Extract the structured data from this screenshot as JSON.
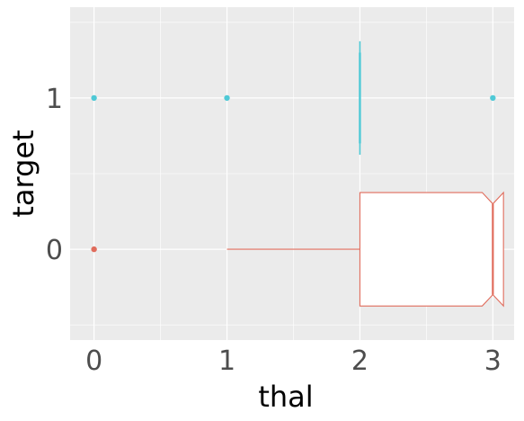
{
  "chart_data": {
    "type": "boxplot",
    "orientation": "horizontal",
    "notched": true,
    "xlabel": "thal",
    "ylabel": "target",
    "x_ticks": [
      "0",
      "1",
      "2",
      "3"
    ],
    "y_ticks": [
      "0",
      "1"
    ],
    "xlim": [
      -0.18,
      3.16
    ],
    "ylim": [
      -0.6,
      1.6
    ],
    "grid": true,
    "legend": "none",
    "colors": {
      "0": "#e06c5c",
      "1": "#4fc9d6"
    },
    "series": [
      {
        "target": 0,
        "whisker_low": 1,
        "q1": 2,
        "median": 3,
        "q3": 3,
        "whisker_high": 3,
        "notch_low": 2.92,
        "notch_high": 3.08,
        "outliers": [
          0
        ]
      },
      {
        "target": 1,
        "whisker_low": 2,
        "q1": 2,
        "median": 2,
        "q3": 2,
        "whisker_high": 2,
        "notch_low": 2,
        "notch_high": 2,
        "outliers": [
          0,
          1,
          3
        ]
      }
    ]
  }
}
